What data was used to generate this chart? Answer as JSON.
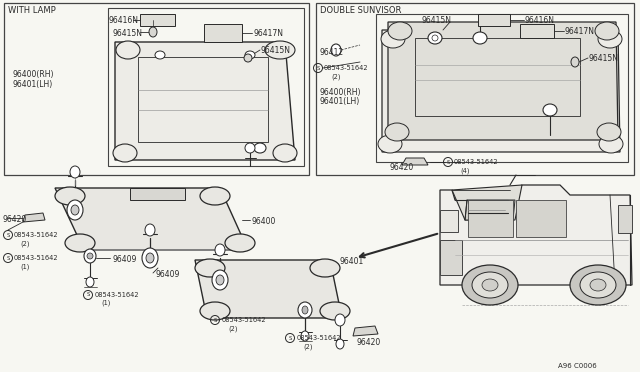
{
  "bg_color": "#f7f7f2",
  "line_color": "#2a2a2a",
  "box_color": "#444444",
  "with_lamp_label": "WITH LAMP",
  "double_sunvisor_label": "DOUBLE SUNVISOR",
  "diagram_ref": "A96 C0006",
  "screw_part": "08543-51642",
  "parts": [
    "96400",
    "96401",
    "96409",
    "96412",
    "96415N",
    "96416N",
    "96417N",
    "96420"
  ]
}
